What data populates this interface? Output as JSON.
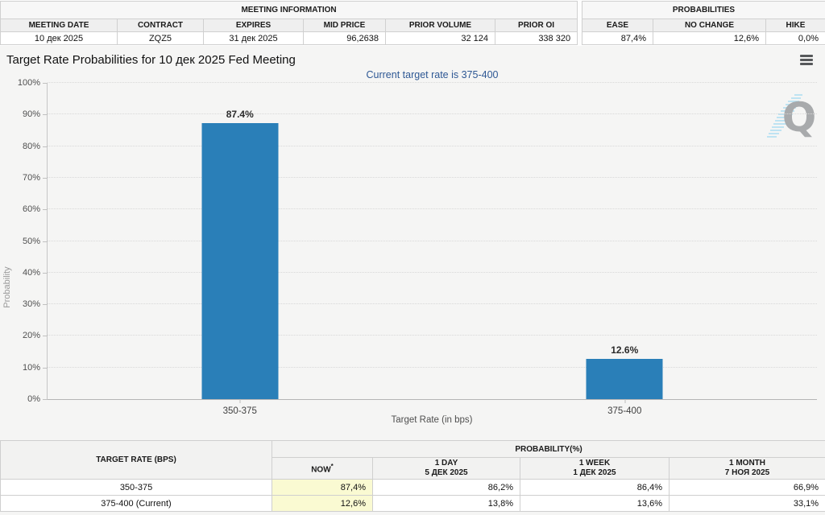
{
  "meeting_info": {
    "title": "MEETING INFORMATION",
    "columns": [
      "MEETING DATE",
      "CONTRACT",
      "EXPIRES",
      "MID PRICE",
      "PRIOR VOLUME",
      "PRIOR OI"
    ],
    "values": [
      "10 дек 2025",
      "ZQZ5",
      "31 дек 2025",
      "96,2638",
      "32 124",
      "338 320"
    ]
  },
  "probabilities": {
    "title": "PROBABILITIES",
    "columns": [
      "EASE",
      "NO CHANGE",
      "HIKE"
    ],
    "values": [
      "87,4%",
      "12,6%",
      "0,0%"
    ]
  },
  "header": {
    "title": "Target Rate Probabilities for 10 дек 2025 Fed Meeting",
    "menu_icon": "hamburger-icon",
    "watermark_letter": "Q"
  },
  "chart_data": {
    "type": "bar",
    "title": "Target Rate Probabilities for 10 дек 2025 Fed Meeting",
    "subtitle": "Current target rate is 375-400",
    "categories": [
      "350-375",
      "375-400"
    ],
    "values": [
      87.4,
      12.6
    ],
    "point_labels": [
      "87.4%",
      "12.6%"
    ],
    "xlabel": "Target Rate (in bps)",
    "ylabel": "Probability",
    "ylim": [
      0,
      100
    ],
    "yticks": [
      "0%",
      "10%",
      "20%",
      "30%",
      "40%",
      "50%",
      "60%",
      "70%",
      "80%",
      "90%",
      "100%"
    ],
    "grid": "dotted-horizontal",
    "legend": "none",
    "bar_color": "#2A7FB8"
  },
  "history_table": {
    "rate_header": "TARGET RATE (BPS)",
    "group_header": "PROBABILITY(%)",
    "columns": [
      {
        "label": "NOW",
        "sup": "*",
        "date": ""
      },
      {
        "label": "1 DAY",
        "date": "5 ДЕК 2025"
      },
      {
        "label": "1 WEEK",
        "date": "1 ДЕК 2025"
      },
      {
        "label": "1 MONTH",
        "date": "7 НОЯ 2025"
      }
    ],
    "rows": [
      {
        "rate": "350-375",
        "now": "87,4%",
        "day": "86,2%",
        "week": "86,4%",
        "month": "66,9%"
      },
      {
        "rate": "375-400 (Current)",
        "now": "12,6%",
        "day": "13,8%",
        "week": "13,6%",
        "month": "33,1%"
      }
    ]
  },
  "colors": {
    "bar_blue": "#2A7FB8",
    "subtitle_blue": "#2E5894",
    "now_highlight": "#FAFAD2",
    "panel_gray": "#F5F5F4"
  }
}
